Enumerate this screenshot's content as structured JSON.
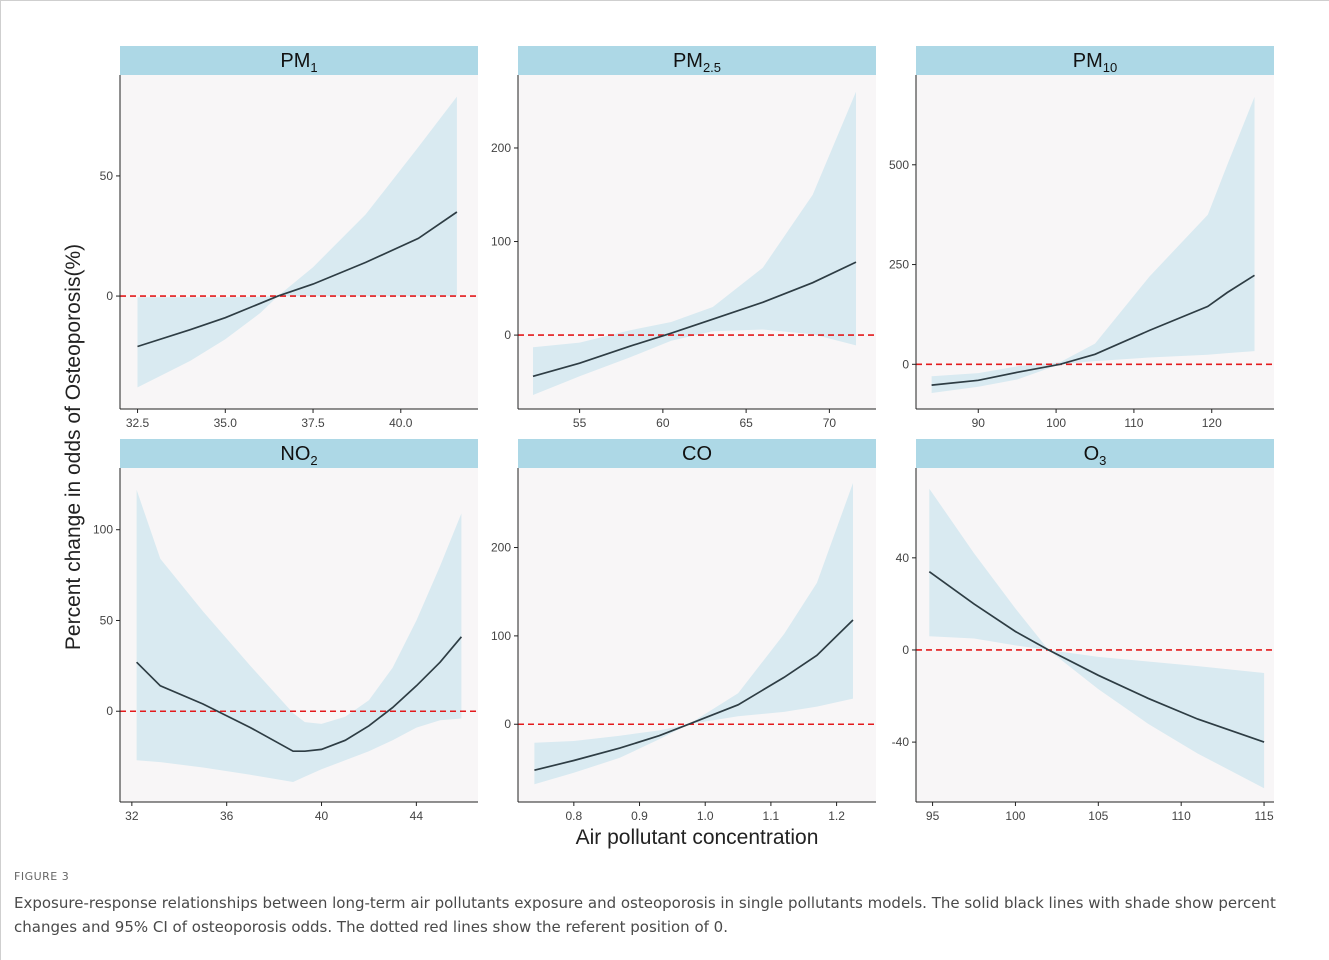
{
  "figure": {
    "ylabel": "Percent change in odds of Osteoporosis(%)",
    "xlabel": "Air pollutant concentration",
    "caption_label": "FIGURE 3",
    "caption": "Exposure-response relationships between long-term air pollutants exposure and osteoporosis in single pollutants models. The solid black lines with shade show percent changes and 95% CI of osteoporosis odds. The dotted red lines show the referent position of 0.",
    "colors": {
      "strip": "#add8e6",
      "panel_bg": "#f8f6f7",
      "ribbon": "#d9eaf1",
      "line": "#2e3d44",
      "reference": "#e31a1c"
    }
  },
  "chart_data": [
    {
      "type": "line",
      "title": "PM1",
      "title_base": "PM",
      "title_sub": "1",
      "xlim": [
        32.0,
        42.2
      ],
      "ylim": [
        -47,
        92
      ],
      "xticks": [
        32.5,
        35.0,
        37.5,
        40.0
      ],
      "xtick_labels": [
        "32.5",
        "35.0",
        "37.5",
        "40.0"
      ],
      "yticks": [
        0,
        50
      ],
      "ytick_labels": [
        "0",
        "50"
      ],
      "x": [
        32.5,
        34,
        35,
        36,
        36.5,
        37.5,
        39,
        40.5,
        41.6
      ],
      "y": [
        -21,
        -14,
        -9,
        -3,
        0,
        5,
        14,
        24,
        35
      ],
      "lower": [
        -38,
        -27,
        -18,
        -7,
        0,
        0,
        0,
        0,
        0
      ],
      "upper": [
        -0.5,
        -0.5,
        -0.5,
        -0.3,
        0,
        12,
        34,
        62,
        83
      ],
      "reference": 0
    },
    {
      "type": "line",
      "title": "PM2.5",
      "title_base": "PM",
      "title_sub": "2.5",
      "xlim": [
        51.3,
        72.8
      ],
      "ylim": [
        -79,
        278
      ],
      "xticks": [
        55,
        60,
        65,
        70
      ],
      "xtick_labels": [
        "55",
        "60",
        "65",
        "70"
      ],
      "yticks": [
        0,
        100,
        200
      ],
      "ytick_labels": [
        "0",
        "100",
        "200"
      ],
      "x": [
        52.2,
        55,
        58,
        60.5,
        63,
        66,
        69,
        71.6
      ],
      "y": [
        -44,
        -30,
        -12,
        2,
        17,
        35,
        56,
        78
      ],
      "lower": [
        -64,
        -44,
        -24,
        -6,
        4,
        6,
        1,
        -11
      ],
      "upper": [
        -13,
        -8,
        5,
        14,
        30,
        72,
        150,
        260
      ],
      "reference": 0
    },
    {
      "type": "line",
      "title": "PM10",
      "title_base": "PM",
      "title_sub": "10",
      "xlim": [
        82.0,
        128.0
      ],
      "ylim": [
        -112,
        725
      ],
      "xticks": [
        90,
        100,
        110,
        120
      ],
      "xtick_labels": [
        "90",
        "100",
        "110",
        "120"
      ],
      "yticks": [
        0,
        250,
        500
      ],
      "ytick_labels": [
        "0",
        "250",
        "500"
      ],
      "x": [
        84,
        90,
        95,
        100.5,
        105,
        112,
        119.5,
        122,
        125.5
      ],
      "y": [
        -52,
        -40,
        -20,
        0,
        25,
        85,
        145,
        180,
        223
      ],
      "lower": [
        -72,
        -56,
        -38,
        0,
        8,
        17,
        24,
        28,
        33
      ],
      "upper": [
        -30,
        -22,
        -5,
        5,
        52,
        220,
        375,
        500,
        670
      ],
      "reference": 0
    },
    {
      "type": "line",
      "title": "NO2",
      "title_base": "NO",
      "title_sub": "2",
      "xlim": [
        31.5,
        46.6
      ],
      "ylim": [
        -50,
        134
      ],
      "xticks": [
        32,
        36,
        40,
        44
      ],
      "xtick_labels": [
        "32",
        "36",
        "40",
        "44"
      ],
      "yticks": [
        0,
        50,
        100
      ],
      "ytick_labels": [
        "0",
        "50",
        "100"
      ],
      "x": [
        32.2,
        33.2,
        35,
        37,
        38.8,
        39.3,
        40,
        41,
        42,
        43,
        44,
        45,
        45.9
      ],
      "y": [
        27,
        14,
        4,
        -9,
        -22,
        -22,
        -21,
        -16,
        -8,
        2,
        14,
        27,
        41
      ],
      "lower": [
        -27,
        -28,
        -31,
        -35,
        -39,
        -36,
        -32,
        -27,
        -22,
        -16,
        -9,
        -5,
        -4
      ],
      "upper": [
        122,
        84,
        55,
        25,
        -1,
        -6,
        -7,
        -3,
        6,
        24,
        50,
        80,
        109
      ],
      "reference": 0
    },
    {
      "type": "line",
      "title": "CO",
      "title_base": "CO",
      "title_sub": "",
      "xlim": [
        0.715,
        1.26
      ],
      "ylim": [
        -88,
        290
      ],
      "xticks": [
        0.8,
        0.9,
        1.0,
        1.1,
        1.2
      ],
      "xtick_labels": [
        "0.8",
        "0.9",
        "1.0",
        "1.1",
        "1.2"
      ],
      "yticks": [
        0,
        100,
        200
      ],
      "ytick_labels": [
        "0",
        "100",
        "200"
      ],
      "x": [
        0.74,
        0.8,
        0.87,
        0.93,
        0.975,
        1.05,
        1.12,
        1.17,
        1.225
      ],
      "y": [
        -52,
        -41,
        -27,
        -13,
        0,
        22,
        53,
        78,
        118
      ],
      "lower": [
        -68,
        -55,
        -38,
        -17,
        0,
        9,
        14,
        20,
        29
      ],
      "upper": [
        -21,
        -19,
        -13,
        -7,
        0,
        35,
        102,
        160,
        273
      ],
      "reference": 0
    },
    {
      "type": "line",
      "title": "O3",
      "title_base": "O",
      "title_sub": "3",
      "xlim": [
        94.0,
        115.6
      ],
      "ylim": [
        -66,
        79
      ],
      "xticks": [
        95,
        100,
        105,
        110,
        115
      ],
      "xtick_labels": [
        "95",
        "100",
        "105",
        "110",
        "115"
      ],
      "yticks": [
        -40,
        0,
        40
      ],
      "ytick_labels": [
        "-40",
        "0",
        "40"
      ],
      "x": [
        94.8,
        97.5,
        100,
        102,
        105,
        108,
        111,
        115
      ],
      "y": [
        34,
        20,
        8,
        0,
        -11,
        -21,
        -30,
        -40
      ],
      "lower": [
        6,
        5,
        2,
        0,
        -17,
        -32,
        -45,
        -60
      ],
      "upper": [
        70,
        42,
        18,
        0,
        -3,
        -5,
        -7,
        -10
      ],
      "reference": 0
    }
  ]
}
